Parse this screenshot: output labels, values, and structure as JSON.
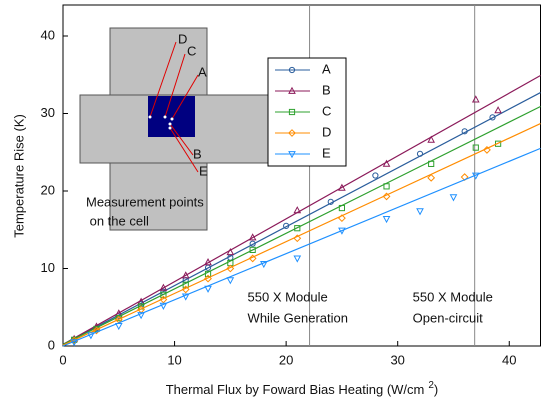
{
  "chart_data": {
    "type": "scatter",
    "xlabel": "Thermal Flux by Foward Bias Heating (W/cm",
    "xlabel_superscript": "2",
    "xlabel_end": ")",
    "ylabel": "Temperature Rise (K)",
    "xlim": [
      0,
      42.8
    ],
    "ylim": [
      0,
      44
    ],
    "xticks": [
      0,
      10,
      20,
      30,
      40
    ],
    "yticks": [
      0,
      10,
      20,
      30,
      40
    ],
    "fit_x": [
      0,
      42.8
    ],
    "series": [
      {
        "name": "A",
        "color": "#2a5d9c",
        "marker": "circle",
        "x": [
          1,
          3,
          5,
          7,
          9,
          11,
          13,
          15,
          17,
          20,
          24,
          28,
          32,
          36,
          38.5
        ],
        "values": [
          0.8,
          2.3,
          3.9,
          5.4,
          7.0,
          8.5,
          10.1,
          11.4,
          13.2,
          15.5,
          18.6,
          22.0,
          24.8,
          27.7,
          29.5
        ],
        "fit_values": [
          0.2,
          32.7
        ]
      },
      {
        "name": "B",
        "color": "#8b1a5a",
        "marker": "triangle-up",
        "x": [
          1,
          3,
          5,
          7,
          9,
          11,
          13,
          15,
          17,
          21,
          25,
          29,
          33,
          37,
          39
        ],
        "values": [
          0.9,
          2.5,
          4.2,
          5.7,
          7.5,
          9.1,
          10.8,
          12.1,
          14.0,
          17.5,
          20.4,
          23.5,
          26.6,
          31.8,
          30.4
        ],
        "fit_values": [
          0.2,
          34.9
        ]
      },
      {
        "name": "C",
        "color": "#2ea02e",
        "marker": "square",
        "x": [
          1,
          3,
          5,
          7,
          9,
          11,
          13,
          15,
          17,
          21,
          25,
          29,
          33,
          37,
          39
        ],
        "values": [
          0.8,
          2.2,
          3.6,
          5.1,
          6.6,
          7.9,
          9.3,
          10.7,
          12.4,
          15.2,
          17.8,
          20.6,
          23.5,
          25.6,
          26.1
        ],
        "fit_values": [
          0.2,
          30.9
        ]
      },
      {
        "name": "D",
        "color": "#ff8c00",
        "marker": "diamond",
        "x": [
          1,
          3,
          5,
          7,
          9,
          11,
          13,
          15,
          17,
          21,
          25,
          29,
          33,
          36,
          38
        ],
        "values": [
          0.7,
          2.0,
          3.4,
          4.7,
          6.0,
          7.3,
          8.7,
          10.0,
          11.3,
          13.9,
          16.5,
          19.3,
          21.7,
          21.8,
          25.3
        ],
        "fit_values": [
          0.1,
          28.7
        ]
      },
      {
        "name": "E",
        "color": "#1e90ff",
        "marker": "triangle-down",
        "x": [
          1,
          2.5,
          5,
          7,
          9,
          11,
          13,
          15,
          18,
          21,
          25,
          29,
          32,
          35,
          37
        ],
        "values": [
          0.5,
          1.4,
          2.6,
          4.0,
          5.2,
          6.4,
          7.4,
          8.5,
          10.6,
          11.3,
          14.9,
          16.4,
          17.4,
          19.2,
          22.0
        ],
        "fit_values": [
          0.0,
          25.5
        ]
      }
    ],
    "vlines": [
      {
        "x": 22.1,
        "lines": [
          "550 X Module",
          "While Generation"
        ]
      },
      {
        "x": 36.9,
        "lines": [
          "550 X Module",
          "Open-circuit"
        ]
      }
    ],
    "inset": {
      "labels": [
        "D",
        "C",
        "A",
        "B",
        "E"
      ],
      "caption": [
        "Measurement points",
        " on the cell"
      ]
    }
  }
}
